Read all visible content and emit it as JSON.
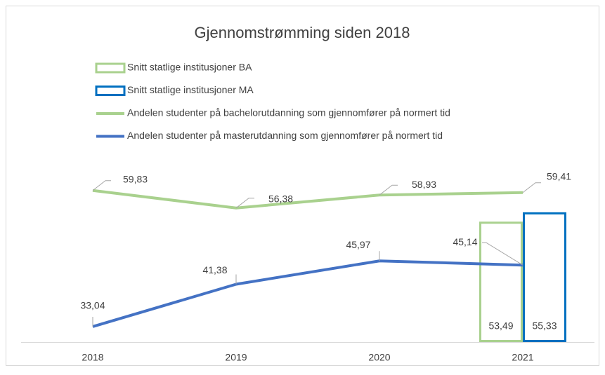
{
  "chart_data": {
    "type": "combo",
    "title": "Gjennomstrømming siden 2018",
    "categories": [
      "2018",
      "2019",
      "2020",
      "2021"
    ],
    "ylim": [
      30,
      70
    ],
    "series": [
      {
        "name": "Snitt statlige institusjoner BA",
        "type": "bar",
        "color": "#a9d18e",
        "values": [
          null,
          null,
          null,
          53.49
        ],
        "value_labels": [
          null,
          null,
          null,
          "53,49"
        ]
      },
      {
        "name": "Snitt statlige institusjoner MA",
        "type": "bar",
        "color": "#0070c0",
        "values": [
          null,
          null,
          null,
          55.33
        ],
        "value_labels": [
          null,
          null,
          null,
          "55,33"
        ]
      },
      {
        "name": "Andelen studenter på bachelorutdanning som gjennomfører på normert tid",
        "type": "line",
        "color": "#a9d18e",
        "values": [
          59.83,
          56.38,
          58.93,
          59.41
        ],
        "value_labels": [
          "59,83",
          "56,38",
          "58,93",
          "59,41"
        ]
      },
      {
        "name": "Andelen studenter på masterutdanning som gjennomfører på normert tid",
        "type": "line",
        "color": "#4472c4",
        "values": [
          33.04,
          41.38,
          45.97,
          45.14
        ],
        "value_labels": [
          "33,04",
          "41,38",
          "45,97",
          "45,14"
        ]
      }
    ]
  }
}
